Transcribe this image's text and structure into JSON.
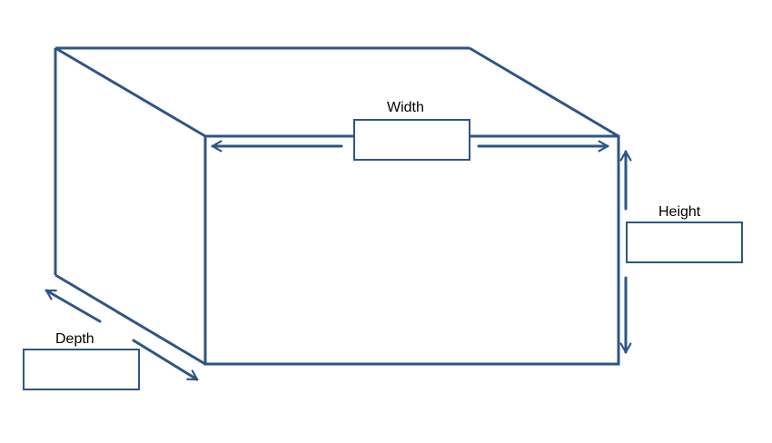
{
  "colors": {
    "line": "#2e5586",
    "background": "#ffffff",
    "text": "#000000"
  },
  "labels": {
    "width": "Width",
    "height": "Height",
    "depth": "Depth"
  },
  "inputs": {
    "width_value": "",
    "height_value": "",
    "depth_value": ""
  }
}
